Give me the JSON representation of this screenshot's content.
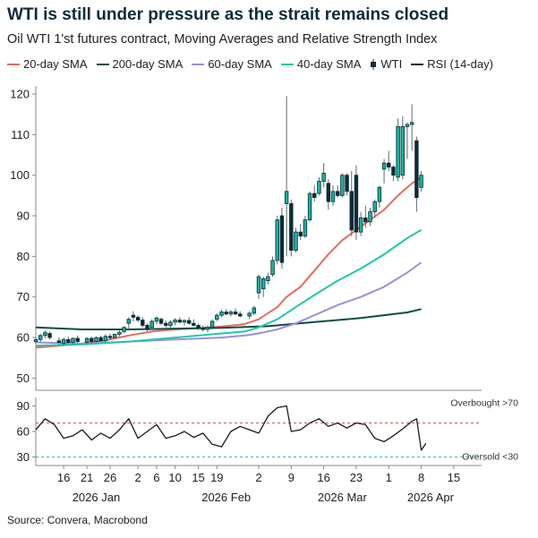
{
  "header": {
    "title": "WTI is still under pressure as the strait remains closed",
    "subtitle": "Oil WTI 1'st futures contract, Moving Averages and Relative Strength Index"
  },
  "source": "Source: Convera, Macrobond",
  "colors": {
    "sma20": "#e66b60",
    "sma200": "#0f4d46",
    "sma60": "#9b8fe0",
    "sma40": "#22c7a9",
    "candle_up": "#18b49c",
    "candle_down": "#0e2b3a",
    "rsi": "#1b1b1b",
    "overbought": "#d9534f",
    "oversold": "#22c7a9"
  },
  "chart_data": {
    "type": "candlestick",
    "date_origin": "2026-01-10",
    "x_ticks": [
      {
        "day": 6,
        "label": "16"
      },
      {
        "day": 11,
        "label": "21"
      },
      {
        "day": 16,
        "label": "26"
      },
      {
        "day": 22,
        "label": "2"
      },
      {
        "day": 26,
        "label": "6"
      },
      {
        "day": 30,
        "label": "10"
      },
      {
        "day": 35,
        "label": "15"
      },
      {
        "day": 39,
        "label": "19"
      },
      {
        "day": 48,
        "label": "2"
      },
      {
        "day": 55,
        "label": "9"
      },
      {
        "day": 62,
        "label": "16"
      },
      {
        "day": 69,
        "label": "23"
      },
      {
        "day": 76,
        "label": "1"
      },
      {
        "day": 83,
        "label": "8"
      },
      {
        "day": 90,
        "label": "15"
      }
    ],
    "month_labels": [
      {
        "day": 13,
        "label": "2026 Jan"
      },
      {
        "day": 41,
        "label": "2026 Feb"
      },
      {
        "day": 66,
        "label": "2026 Mar"
      },
      {
        "day": 85,
        "label": "2026 Apr"
      }
    ],
    "price_axis": {
      "min": 47,
      "max": 122,
      "ticks": [
        50,
        60,
        70,
        80,
        90,
        100,
        110,
        120
      ]
    },
    "rsi_axis": {
      "min": 20,
      "max": 100,
      "ticks": [
        30,
        60,
        90
      ]
    },
    "legend": [
      {
        "name": "20-day SMA",
        "key": "sma20",
        "kind": "line"
      },
      {
        "name": "200-day SMA",
        "key": "sma200",
        "kind": "line"
      },
      {
        "name": "60-day SMA",
        "key": "sma60",
        "kind": "line"
      },
      {
        "name": "40-day SMA",
        "key": "sma40",
        "kind": "line"
      },
      {
        "name": "WTI",
        "key": "candle_up",
        "kind": "candle"
      },
      {
        "name": "RSI (14-day)",
        "key": "rsi",
        "kind": "line"
      }
    ],
    "candles": [
      {
        "day": 0,
        "o": 59.0,
        "h": 60.0,
        "l": 58.5,
        "c": 59.5
      },
      {
        "day": 1,
        "o": 59.5,
        "h": 61.0,
        "l": 58.8,
        "c": 60.5
      },
      {
        "day": 2,
        "o": 60.5,
        "h": 61.8,
        "l": 59.8,
        "c": 61.2
      },
      {
        "day": 3,
        "o": 61.0,
        "h": 61.5,
        "l": 59.5,
        "c": 60.0
      },
      {
        "day": 5,
        "o": 59.2,
        "h": 60.0,
        "l": 58.2,
        "c": 58.8
      },
      {
        "day": 6,
        "o": 58.5,
        "h": 60.0,
        "l": 58.0,
        "c": 59.5
      },
      {
        "day": 7,
        "o": 59.5,
        "h": 60.2,
        "l": 58.5,
        "c": 58.8
      },
      {
        "day": 8,
        "o": 58.8,
        "h": 60.0,
        "l": 58.3,
        "c": 59.8
      },
      {
        "day": 9,
        "o": 59.8,
        "h": 60.5,
        "l": 58.8,
        "c": 59.0
      },
      {
        "day": 11,
        "o": 58.8,
        "h": 60.0,
        "l": 58.3,
        "c": 59.8
      },
      {
        "day": 12,
        "o": 59.8,
        "h": 60.3,
        "l": 58.5,
        "c": 59.0
      },
      {
        "day": 13,
        "o": 59.0,
        "h": 60.3,
        "l": 58.8,
        "c": 60.0
      },
      {
        "day": 14,
        "o": 60.0,
        "h": 60.5,
        "l": 59.0,
        "c": 59.2
      },
      {
        "day": 15,
        "o": 59.2,
        "h": 60.8,
        "l": 58.8,
        "c": 60.3
      },
      {
        "day": 16,
        "o": 60.3,
        "h": 61.0,
        "l": 59.5,
        "c": 60.0
      },
      {
        "day": 17,
        "o": 60.0,
        "h": 61.0,
        "l": 59.7,
        "c": 60.8
      },
      {
        "day": 18,
        "o": 60.8,
        "h": 61.8,
        "l": 60.3,
        "c": 61.3
      },
      {
        "day": 19,
        "o": 61.5,
        "h": 62.8,
        "l": 61.0,
        "c": 62.5
      },
      {
        "day": 20,
        "o": 63.5,
        "h": 65.0,
        "l": 62.0,
        "c": 64.5
      },
      {
        "day": 21,
        "o": 65.5,
        "h": 66.5,
        "l": 64.0,
        "c": 65.0
      },
      {
        "day": 22,
        "o": 65.0,
        "h": 65.5,
        "l": 63.8,
        "c": 64.3
      },
      {
        "day": 23,
        "o": 64.3,
        "h": 65.0,
        "l": 62.5,
        "c": 63.0
      },
      {
        "day": 24,
        "o": 63.0,
        "h": 63.5,
        "l": 61.5,
        "c": 62.0
      },
      {
        "day": 25,
        "o": 62.5,
        "h": 64.5,
        "l": 62.0,
        "c": 64.0
      },
      {
        "day": 26,
        "o": 64.0,
        "h": 65.2,
        "l": 63.2,
        "c": 64.8
      },
      {
        "day": 27,
        "o": 64.5,
        "h": 65.0,
        "l": 63.0,
        "c": 63.5
      },
      {
        "day": 28,
        "o": 63.5,
        "h": 64.2,
        "l": 62.5,
        "c": 63.0
      },
      {
        "day": 29,
        "o": 63.0,
        "h": 64.3,
        "l": 62.3,
        "c": 63.8
      },
      {
        "day": 30,
        "o": 63.8,
        "h": 64.8,
        "l": 63.0,
        "c": 64.3
      },
      {
        "day": 31,
        "o": 64.3,
        "h": 65.0,
        "l": 63.5,
        "c": 63.8
      },
      {
        "day": 32,
        "o": 63.8,
        "h": 64.5,
        "l": 63.0,
        "c": 64.2
      },
      {
        "day": 33,
        "o": 64.2,
        "h": 65.0,
        "l": 63.2,
        "c": 63.5
      },
      {
        "day": 34,
        "o": 63.5,
        "h": 64.5,
        "l": 62.8,
        "c": 63.0
      },
      {
        "day": 35,
        "o": 63.0,
        "h": 63.5,
        "l": 61.8,
        "c": 62.3
      },
      {
        "day": 36,
        "o": 62.3,
        "h": 63.0,
        "l": 61.5,
        "c": 62.0
      },
      {
        "day": 37,
        "o": 62.0,
        "h": 63.0,
        "l": 61.3,
        "c": 62.5
      },
      {
        "day": 38,
        "o": 62.5,
        "h": 64.5,
        "l": 62.0,
        "c": 64.0
      },
      {
        "day": 39,
        "o": 64.5,
        "h": 66.0,
        "l": 64.0,
        "c": 65.5
      },
      {
        "day": 40,
        "o": 65.5,
        "h": 66.8,
        "l": 65.0,
        "c": 66.3
      },
      {
        "day": 41,
        "o": 66.3,
        "h": 67.0,
        "l": 65.5,
        "c": 65.8
      },
      {
        "day": 42,
        "o": 65.8,
        "h": 66.8,
        "l": 65.2,
        "c": 66.3
      },
      {
        "day": 43,
        "o": 66.3,
        "h": 67.2,
        "l": 65.5,
        "c": 65.8
      },
      {
        "day": 44,
        "o": 65.8,
        "h": 66.5,
        "l": 65.0,
        "c": 65.3
      },
      {
        "day": 46,
        "o": 65.3,
        "h": 66.5,
        "l": 64.5,
        "c": 66.0
      },
      {
        "day": 47,
        "o": 66.0,
        "h": 67.8,
        "l": 65.5,
        "c": 67.3
      },
      {
        "day": 48,
        "o": 71.0,
        "h": 75.5,
        "l": 69.5,
        "c": 75.0
      },
      {
        "day": 49,
        "o": 72.0,
        "h": 75.0,
        "l": 70.0,
        "c": 74.5
      },
      {
        "day": 50,
        "o": 74.0,
        "h": 76.0,
        "l": 73.0,
        "c": 75.0
      },
      {
        "day": 51,
        "o": 75.5,
        "h": 80.0,
        "l": 75.0,
        "c": 79.0
      },
      {
        "day": 52,
        "o": 79.0,
        "h": 90.0,
        "l": 78.0,
        "c": 89.0
      },
      {
        "day": 53,
        "o": 90.0,
        "h": 92.0,
        "l": 77.0,
        "c": 78.5
      },
      {
        "day": 54,
        "o": 93.0,
        "h": 119.5,
        "l": 80.0,
        "c": 96.0
      },
      {
        "day": 55,
        "o": 93.0,
        "h": 94.0,
        "l": 80.0,
        "c": 81.5
      },
      {
        "day": 56,
        "o": 81.5,
        "h": 87.0,
        "l": 81.0,
        "c": 86.0
      },
      {
        "day": 57,
        "o": 86.0,
        "h": 88.0,
        "l": 84.0,
        "c": 85.0
      },
      {
        "day": 58,
        "o": 85.0,
        "h": 90.0,
        "l": 84.5,
        "c": 89.0
      },
      {
        "day": 59,
        "o": 89.0,
        "h": 96.0,
        "l": 88.5,
        "c": 95.5
      },
      {
        "day": 60,
        "o": 95.5,
        "h": 97.5,
        "l": 93.5,
        "c": 94.5
      },
      {
        "day": 61,
        "o": 95.5,
        "h": 99.5,
        "l": 95.0,
        "c": 98.5
      },
      {
        "day": 62,
        "o": 98.5,
        "h": 103.0,
        "l": 97.0,
        "c": 100.5
      },
      {
        "day": 63,
        "o": 98.0,
        "h": 99.0,
        "l": 91.5,
        "c": 93.5
      },
      {
        "day": 64,
        "o": 93.5,
        "h": 97.5,
        "l": 92.5,
        "c": 96.0
      },
      {
        "day": 65,
        "o": 96.0,
        "h": 97.5,
        "l": 94.5,
        "c": 95.0
      },
      {
        "day": 66,
        "o": 95.0,
        "h": 100.5,
        "l": 94.5,
        "c": 100.0
      },
      {
        "day": 67,
        "o": 100.0,
        "h": 100.5,
        "l": 95.0,
        "c": 96.0
      },
      {
        "day": 68,
        "o": 96.0,
        "h": 101.0,
        "l": 85.0,
        "c": 86.5
      },
      {
        "day": 69,
        "o": 100.0,
        "h": 102.5,
        "l": 84.0,
        "c": 86.0
      },
      {
        "day": 70,
        "o": 86.0,
        "h": 91.0,
        "l": 85.0,
        "c": 89.5
      },
      {
        "day": 71,
        "o": 89.5,
        "h": 92.5,
        "l": 87.0,
        "c": 88.5
      },
      {
        "day": 72,
        "o": 88.5,
        "h": 92.0,
        "l": 87.5,
        "c": 91.0
      },
      {
        "day": 73,
        "o": 91.0,
        "h": 94.0,
        "l": 89.5,
        "c": 93.5
      },
      {
        "day": 74,
        "o": 93.5,
        "h": 97.5,
        "l": 92.0,
        "c": 97.0
      },
      {
        "day": 75,
        "o": 101.5,
        "h": 104.0,
        "l": 98.0,
        "c": 103.0
      },
      {
        "day": 76,
        "o": 103.0,
        "h": 106.0,
        "l": 101.0,
        "c": 102.0
      },
      {
        "day": 77,
        "o": 102.0,
        "h": 102.5,
        "l": 98.5,
        "c": 100.0
      },
      {
        "day": 78,
        "o": 99.5,
        "h": 114.0,
        "l": 98.5,
        "c": 112.0
      },
      {
        "day": 79,
        "o": 100.0,
        "h": 114.5,
        "l": 99.0,
        "c": 112.0
      },
      {
        "day": 80,
        "o": 112.0,
        "h": 113.0,
        "l": 104.0,
        "c": 112.5
      },
      {
        "day": 81,
        "o": 112.5,
        "h": 117.5,
        "l": 106.0,
        "c": 113.0
      },
      {
        "day": 82,
        "o": 108.5,
        "h": 109.5,
        "l": 91.0,
        "c": 94.5
      },
      {
        "day": 83,
        "o": 97.0,
        "h": 101.0,
        "l": 96.0,
        "c": 100.0
      }
    ],
    "series": [
      {
        "name": "20-day SMA",
        "key": "sma20",
        "x": [
          0,
          5,
          10,
          15,
          20,
          25,
          30,
          35,
          40,
          45,
          48,
          52,
          54,
          57,
          60,
          63,
          66,
          69,
          72,
          75,
          78,
          81,
          83
        ],
        "y": [
          57.5,
          58.0,
          58.5,
          59.3,
          60.5,
          61.5,
          62.0,
          62.3,
          62.7,
          63.3,
          64.5,
          67.5,
          70.0,
          72.5,
          76.5,
          80.5,
          84.0,
          86.5,
          89.0,
          91.5,
          95.0,
          98.0,
          99.5
        ]
      },
      {
        "name": "200-day SMA",
        "key": "sma200",
        "x": [
          0,
          10,
          20,
          30,
          40,
          50,
          60,
          70,
          80,
          83
        ],
        "y": [
          62.5,
          62.0,
          62.0,
          62.2,
          62.4,
          62.8,
          63.8,
          64.8,
          66.2,
          67.0
        ]
      },
      {
        "name": "60-day SMA",
        "key": "sma60",
        "x": [
          0,
          10,
          20,
          30,
          40,
          45,
          48,
          52,
          56,
          60,
          65,
          70,
          75,
          80,
          83
        ],
        "y": [
          58.8,
          58.5,
          59.0,
          59.5,
          60.0,
          60.5,
          61.0,
          62.0,
          63.5,
          65.5,
          68.0,
          70.0,
          72.5,
          76.0,
          78.5
        ]
      },
      {
        "name": "40-day SMA",
        "key": "sma40",
        "x": [
          0,
          10,
          20,
          30,
          40,
          45,
          48,
          52,
          56,
          60,
          65,
          70,
          75,
          80,
          83
        ],
        "y": [
          58.0,
          58.3,
          59.0,
          60.0,
          61.0,
          61.5,
          62.5,
          64.5,
          67.5,
          70.5,
          74.0,
          77.0,
          80.5,
          84.5,
          86.5
        ]
      },
      {
        "name": "RSI (14-day)",
        "key": "rsi",
        "x": [
          0,
          2,
          4,
          6,
          8,
          10,
          12,
          14,
          16,
          18,
          20,
          22,
          24,
          26,
          28,
          30,
          32,
          34,
          36,
          38,
          40,
          42,
          44,
          46,
          48,
          50,
          52,
          54,
          55,
          57,
          59,
          61,
          63,
          65,
          67,
          69,
          71,
          73,
          75,
          77,
          79,
          81,
          82,
          83,
          84
        ],
        "y": [
          62,
          75,
          68,
          52,
          55,
          62,
          50,
          58,
          52,
          62,
          75,
          52,
          60,
          68,
          52,
          55,
          60,
          53,
          58,
          45,
          42,
          60,
          66,
          62,
          58,
          78,
          88,
          90,
          60,
          62,
          70,
          75,
          66,
          70,
          64,
          70,
          68,
          52,
          48,
          55,
          63,
          72,
          75,
          38,
          46
        ]
      }
    ],
    "rsi_thresholds": [
      {
        "value": 70,
        "label": "Overbought >70",
        "key": "overbought"
      },
      {
        "value": 30,
        "label": "Oversold <30",
        "key": "oversold"
      }
    ]
  }
}
